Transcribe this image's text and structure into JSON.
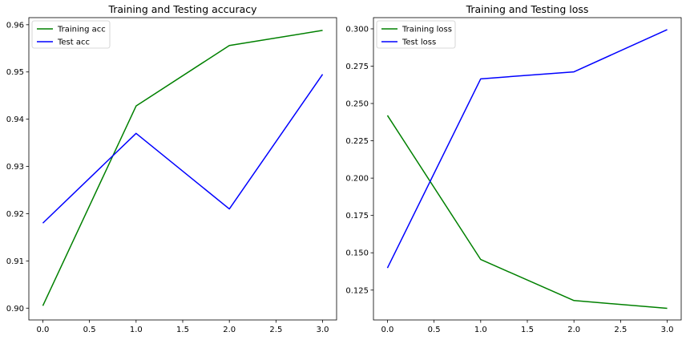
{
  "chart_data": [
    {
      "type": "line",
      "title": "Training and Testing accuracy",
      "xlabel": "",
      "ylabel": "",
      "x": [
        0,
        1,
        2,
        3
      ],
      "xlim": [
        -0.15,
        3.15
      ],
      "ylim": [
        0.8975,
        0.9615
      ],
      "xticks": [
        0.0,
        0.5,
        1.0,
        1.5,
        2.0,
        2.5,
        3.0
      ],
      "xtick_labels": [
        "0.0",
        "0.5",
        "1.0",
        "1.5",
        "2.0",
        "2.5",
        "3.0"
      ],
      "yticks": [
        0.9,
        0.91,
        0.92,
        0.93,
        0.94,
        0.95,
        0.96
      ],
      "ytick_labels": [
        "0.90",
        "0.91",
        "0.92",
        "0.93",
        "0.94",
        "0.95",
        "0.96"
      ],
      "grid": false,
      "legend_position": "top-left",
      "series": [
        {
          "name": "Training acc",
          "color": "#008000",
          "values": [
            0.9005,
            0.9428,
            0.9556,
            0.9588
          ]
        },
        {
          "name": "Test acc",
          "color": "#0000ff",
          "values": [
            0.918,
            0.937,
            0.921,
            0.9495
          ]
        }
      ]
    },
    {
      "type": "line",
      "title": "Training and Testing loss",
      "xlabel": "",
      "ylabel": "",
      "x": [
        0,
        1,
        2,
        3
      ],
      "xlim": [
        -0.15,
        3.15
      ],
      "ylim": [
        0.105,
        0.3075
      ],
      "xticks": [
        0.0,
        0.5,
        1.0,
        1.5,
        2.0,
        2.5,
        3.0
      ],
      "xtick_labels": [
        "0.0",
        "0.5",
        "1.0",
        "1.5",
        "2.0",
        "2.5",
        "3.0"
      ],
      "yticks": [
        0.125,
        0.15,
        0.175,
        0.2,
        0.225,
        0.25,
        0.275,
        0.3
      ],
      "ytick_labels": [
        "0.125",
        "0.150",
        "0.175",
        "0.200",
        "0.225",
        "0.250",
        "0.275",
        "0.300"
      ],
      "grid": false,
      "legend_position": "top-left",
      "series": [
        {
          "name": "Training loss",
          "color": "#008000",
          "values": [
            0.242,
            0.1455,
            0.118,
            0.1128
          ]
        },
        {
          "name": "Test loss",
          "color": "#0000ff",
          "values": [
            0.1398,
            0.2665,
            0.2712,
            0.2995
          ]
        }
      ]
    }
  ]
}
